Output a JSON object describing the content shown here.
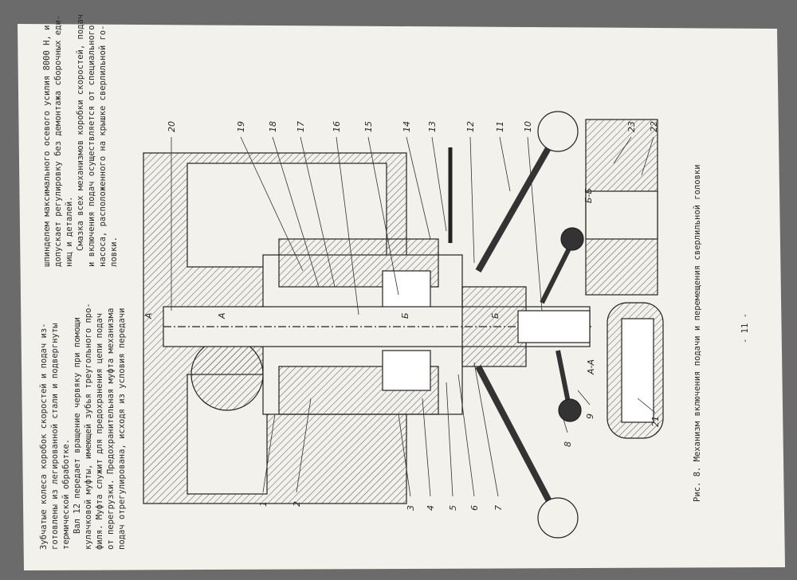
{
  "body_text": {
    "column_1": [
      "Зубчатые колеса коробок скоростей и подач из-",
      "готовлены из легированной стали и подвергнуты",
      "термической обработке.",
      "Вал 12 передает вращение червяку при помощи",
      "кулачковой муфты, имеющей зубья треугольного про-",
      "филя. Муфта служит для предохранения цепи подач",
      "от перегрузки. Предохранительная муфта механизма",
      "подач отрегулирована, исходя из условия передачи"
    ],
    "column_2": [
      "шпинделем максимального осевого усилия 8000 Н, и",
      "допускает регулировку без демонтажа сборочных еди-",
      "ниц и деталей.",
      "Смазка всех механизмов коробки скоростей, подач",
      "и включения подач осуществляется от специального",
      "насоса, расположенного на крышке сверлильной го-",
      "ловки."
    ]
  },
  "figure": {
    "callouts": [
      "1",
      "2",
      "3",
      "4",
      "5",
      "6",
      "7",
      "8",
      "9",
      "10",
      "11",
      "12",
      "13",
      "14",
      "15",
      "16",
      "17",
      "18",
      "19",
      "20",
      "21",
      "22",
      "23"
    ],
    "section_labels": [
      "А",
      "А",
      "Б",
      "Б",
      "А-А",
      "Б-Б"
    ]
  },
  "caption": "Рис. 8. Механизм включения подачи и перемещения сверлильной головки",
  "page_number": "- 11 -"
}
